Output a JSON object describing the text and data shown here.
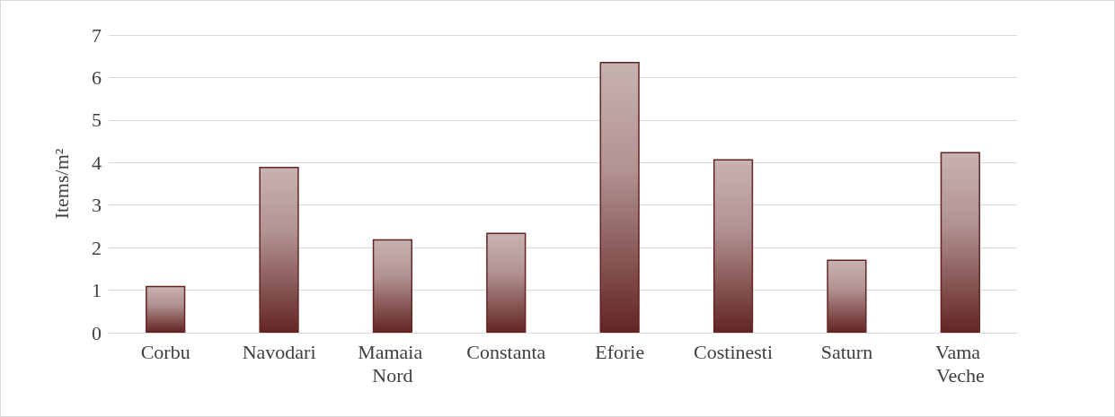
{
  "chart_data": {
    "type": "bar",
    "ylabel": "Items/m²",
    "categories": [
      "Corbu",
      "Navodari",
      "Mamaia Nord",
      "Constanta",
      "Eforie",
      "Costinesti",
      "Saturn",
      "Vama Veche"
    ],
    "values": [
      1.1,
      3.9,
      2.2,
      2.35,
      6.37,
      4.08,
      1.72,
      4.25
    ],
    "color": "#632523",
    "ylim": [
      0,
      7
    ],
    "yticks": [
      0,
      1,
      2,
      3,
      4,
      5,
      6,
      7
    ],
    "grid": "y"
  }
}
